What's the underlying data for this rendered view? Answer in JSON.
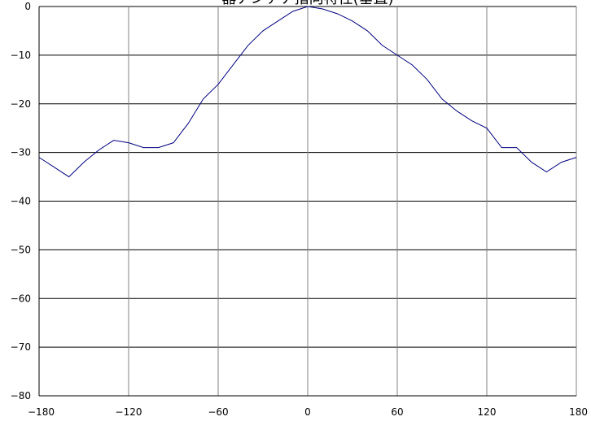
{
  "chart_data": {
    "type": "line",
    "title": "器アンテナ指向特性(垂直)",
    "xlabel": "",
    "ylabel": "",
    "xlim": [
      -180,
      180
    ],
    "ylim": [
      -80,
      0
    ],
    "x_ticks": [
      -180,
      -120,
      -60,
      0,
      60,
      120,
      180
    ],
    "y_ticks": [
      0,
      -10,
      -20,
      -30,
      -40,
      -50,
      -60,
      -70,
      -80
    ],
    "grid": true,
    "series": [
      {
        "color": "#000080",
        "x": [
          -180,
          -170,
          -160,
          -150,
          -140,
          -130,
          -120,
          -110,
          -100,
          -90,
          -80,
          -70,
          -60,
          -50,
          -40,
          -30,
          -20,
          -10,
          0,
          10,
          20,
          30,
          40,
          50,
          60,
          70,
          80,
          90,
          100,
          110,
          120,
          130,
          140,
          150,
          160,
          170,
          180
        ],
        "y": [
          -31,
          -33,
          -35,
          -32,
          -29.5,
          -27.5,
          -28,
          -29,
          -29,
          -28,
          -24,
          -19,
          -16,
          -12,
          -8,
          -5,
          -3,
          -1,
          0,
          -0.5,
          -1.5,
          -3,
          -5,
          -8,
          -10,
          -12,
          -15,
          -19,
          -21.5,
          -23.5,
          -25,
          -29,
          -29,
          -32,
          -34,
          -32,
          -31
        ]
      }
    ]
  }
}
